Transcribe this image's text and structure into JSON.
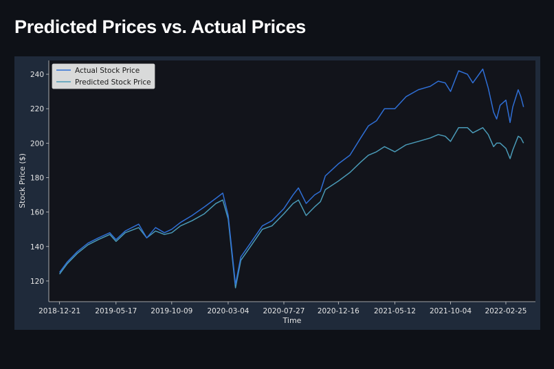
{
  "page": {
    "title": "Predicted Prices vs. Actual Prices"
  },
  "colors": {
    "page_background": "#0e1117",
    "figure_background": "#1f2a3a",
    "axes_background": "#12141b",
    "actual_line": "#2f6fd6",
    "predicted_line": "#4a9bb8",
    "text": "#e6e6e6"
  },
  "chart_data": {
    "type": "line",
    "title": "",
    "xlabel": "Time",
    "ylabel": "Stock Price ($)",
    "ylim": [
      108,
      248
    ],
    "yticks": [
      120,
      140,
      160,
      180,
      200,
      220,
      240
    ],
    "xlim": [
      "2018-11-23",
      "2022-05-13"
    ],
    "xticks": [
      "2018-12-21",
      "2019-05-17",
      "2019-10-09",
      "2020-03-04",
      "2020-07-27",
      "2020-12-16",
      "2021-05-12",
      "2021-10-04",
      "2022-02-25"
    ],
    "legend_position": "top-left",
    "grid": false,
    "x": [
      "2018-12-21",
      "2019-01-10",
      "2019-02-05",
      "2019-03-05",
      "2019-04-01",
      "2019-05-01",
      "2019-05-17",
      "2019-06-10",
      "2019-07-15",
      "2019-08-05",
      "2019-08-28",
      "2019-09-20",
      "2019-10-09",
      "2019-11-01",
      "2019-12-01",
      "2020-01-02",
      "2020-02-01",
      "2020-02-19",
      "2020-03-04",
      "2020-03-23",
      "2020-04-06",
      "2020-05-01",
      "2020-06-01",
      "2020-06-26",
      "2020-07-27",
      "2020-08-20",
      "2020-09-03",
      "2020-09-23",
      "2020-10-15",
      "2020-10-30",
      "2020-11-12",
      "2020-12-16",
      "2021-01-15",
      "2021-02-12",
      "2021-03-04",
      "2021-03-25",
      "2021-04-15",
      "2021-05-12",
      "2021-06-10",
      "2021-07-12",
      "2021-08-12",
      "2021-09-02",
      "2021-09-20",
      "2021-10-04",
      "2021-10-25",
      "2021-11-17",
      "2021-12-01",
      "2021-12-27",
      "2022-01-10",
      "2022-01-24",
      "2022-02-01",
      "2022-02-10",
      "2022-02-25",
      "2022-03-08",
      "2022-03-15",
      "2022-03-29",
      "2022-04-05",
      "2022-04-12"
    ],
    "series": [
      {
        "name": "Actual Stock Price",
        "values": [
          125,
          131,
          137,
          142,
          145,
          148,
          144,
          149,
          153,
          145,
          151,
          148,
          150,
          154,
          158,
          163,
          168,
          171,
          158,
          118,
          134,
          142,
          152,
          155,
          162,
          170,
          174,
          165,
          170,
          172,
          181,
          188,
          193,
          203,
          210,
          213,
          220,
          220,
          227,
          231,
          233,
          236,
          235,
          230,
          242,
          240,
          235,
          243,
          232,
          218,
          214,
          222,
          225,
          212,
          221,
          231,
          227,
          221
        ]
      },
      {
        "name": "Predicted Stock Price",
        "values": [
          124,
          130,
          136,
          141,
          144,
          147,
          143,
          148,
          151,
          145,
          149,
          147,
          148,
          152,
          155,
          159,
          165,
          167,
          156,
          116,
          132,
          140,
          150,
          152,
          159,
          165,
          167,
          158,
          163,
          166,
          173,
          178,
          183,
          189,
          193,
          195,
          198,
          195,
          199,
          201,
          203,
          205,
          204,
          201,
          209,
          209,
          206,
          209,
          205,
          198,
          200,
          200,
          197,
          191,
          196,
          204,
          203,
          200
        ]
      }
    ]
  }
}
